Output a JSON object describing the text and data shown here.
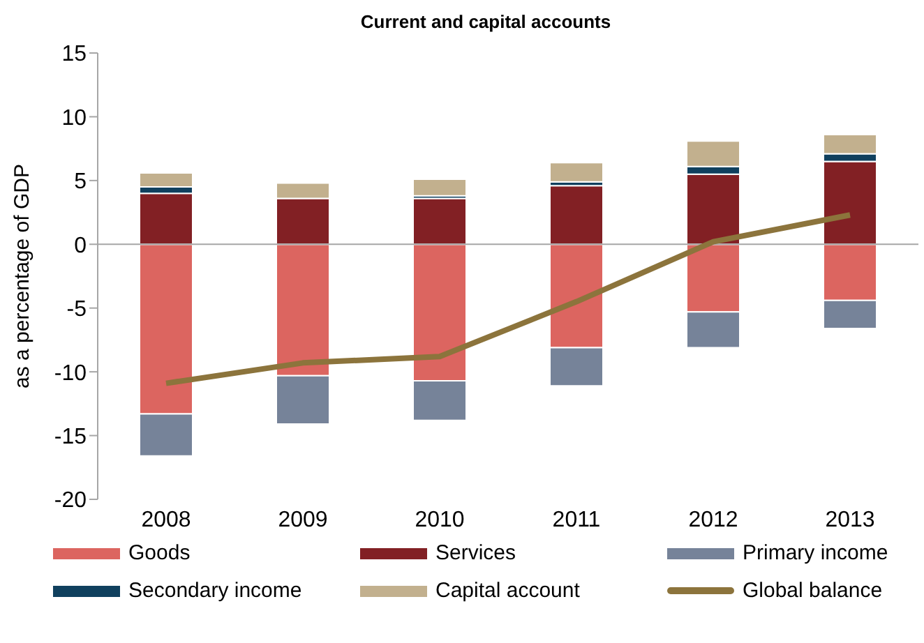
{
  "chart_data": {
    "type": "bar",
    "title": "Current and capital accounts",
    "ylabel": "as a percentage of GDP",
    "categories": [
      "2008",
      "2009",
      "2010",
      "2011",
      "2012",
      "2013"
    ],
    "stacked": true,
    "series": [
      {
        "name": "Goods",
        "color": "#dc6560",
        "values": [
          -13.3,
          -10.3,
          -10.7,
          -8.1,
          -5.3,
          -4.4
        ]
      },
      {
        "name": "Services",
        "color": "#822024",
        "values": [
          4.0,
          3.6,
          3.6,
          4.6,
          5.5,
          6.5
        ]
      },
      {
        "name": "Primary income",
        "color": "#768399",
        "values": [
          -3.3,
          -3.8,
          -3.1,
          -3.0,
          -2.8,
          -2.2
        ]
      },
      {
        "name": "Secondary income",
        "color": "#10405e",
        "values": [
          0.5,
          null,
          0.2,
          0.3,
          0.6,
          0.6
        ]
      },
      {
        "name": "Capital account",
        "color": "#c2b08e",
        "values": [
          1.1,
          1.2,
          1.3,
          1.5,
          2.0,
          1.5
        ]
      },
      {
        "name": "Global balance",
        "color": "#8c743c",
        "type": "line",
        "values": [
          -10.9,
          -9.3,
          -8.8,
          -4.5,
          0.2,
          2.3
        ]
      }
    ],
    "ylim": [
      -20,
      15
    ],
    "yticks": [
      -20,
      -15,
      -10,
      -5,
      0,
      5,
      10,
      15
    ],
    "grid": false,
    "legend": "bottom",
    "marker": "none",
    "line_style": "solid",
    "ref_lines": [
      {
        "axis": "y",
        "value": 0,
        "color": "#a6a6a6"
      }
    ]
  }
}
